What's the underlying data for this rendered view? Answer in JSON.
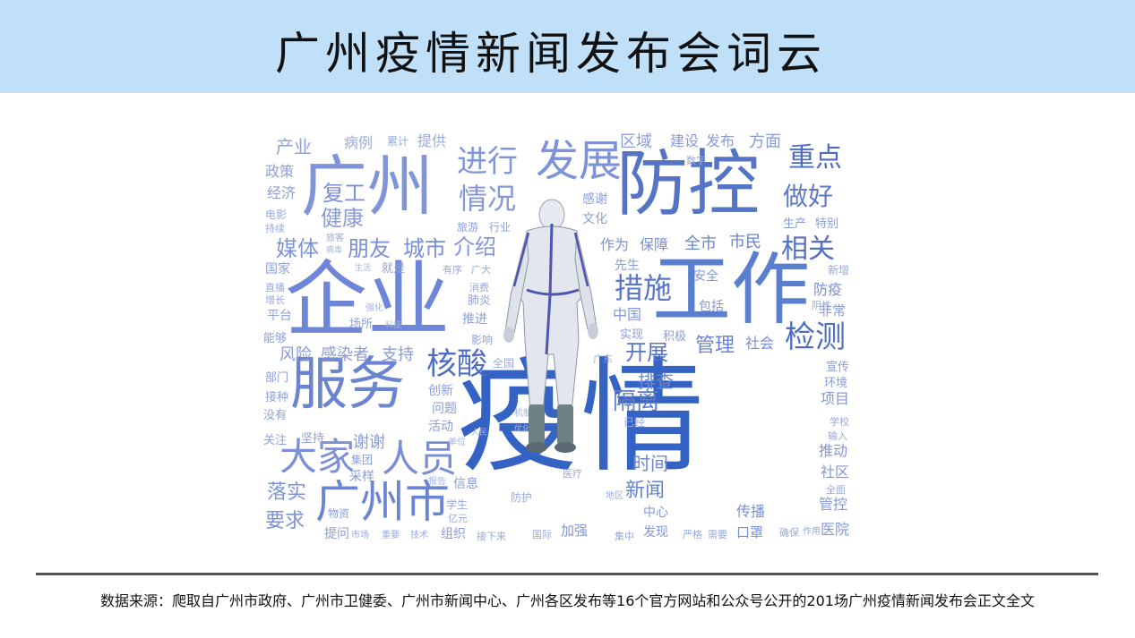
{
  "title": "广州疫情新闻发布会词云",
  "caption": "数据来源：爬取自广州市政府、广州市卫健委、广州市新闻中心、广州各区发布等16个官方网站和公众号公开的201场广州疫情新闻发布会正文全文",
  "colors": {
    "header_bg": "#bfe0f8",
    "dark_blue": "#3a64c8",
    "mid_blue": "#5a7fd2",
    "light_blue": "#8fa6dc",
    "pale_blue": "#b9c7e8"
  },
  "words": {
    "w01": "疫情",
    "w02": "企业",
    "w03": "工作",
    "w04": "防控",
    "w05": "广州",
    "w06": "服务",
    "w07": "广州市",
    "w08": "发展",
    "w09": "大家",
    "w10": "人员",
    "w11": "检测",
    "w12": "核酸",
    "w13": "进行",
    "w14": "情况",
    "w15": "措施",
    "w16": "重点",
    "w17": "相关",
    "w18": "做好",
    "w19": "健康",
    "w20": "复工",
    "w21": "朋友",
    "w22": "城市",
    "w23": "介绍",
    "w24": "媒体",
    "w25": "隔离",
    "w26": "开展",
    "w27": "管理",
    "w28": "排查",
    "w29": "时间",
    "w30": "新闻",
    "w31": "落实",
    "w32": "要求",
    "w33": "谢谢",
    "w34": "感染者",
    "w35": "风险",
    "w36": "支持",
    "w37": "产业",
    "w38": "病例",
    "w39": "提供",
    "w40": "区域",
    "w41": "建设",
    "w42": "发布",
    "w43": "方面",
    "w44": "政策",
    "w45": "经济",
    "w46": "全市",
    "w47": "保障",
    "w48": "作为",
    "w49": "市民",
    "w50": "防疫",
    "w51": "中国",
    "w52": "社会",
    "w53": "包括",
    "w54": "安全",
    "w55": "项目",
    "w56": "推动",
    "w57": "社区",
    "w58": "管控",
    "w59": "医院",
    "w60": "传播",
    "w61": "口罩",
    "w62": "发现",
    "w63": "加强",
    "w64": "中心",
    "w65": "采样",
    "w66": "物资",
    "w67": "提问",
    "w68": "组织",
    "w69": "信息",
    "w70": "活动",
    "w71": "创新",
    "w72": "问题",
    "w73": "感谢",
    "w74": "文化",
    "w75": "生产",
    "w76": "特别",
    "w77": "非常",
    "w78": "环境",
    "w79": "宣传",
    "w80": "先生",
    "w81": "实现",
    "w82": "积极",
    "w83": "国家",
    "w84": "平台",
    "w85": "能够",
    "w86": "部门",
    "w87": "接种",
    "w88": "没有",
    "w89": "关注",
    "w90": "坚持",
    "w91": "集团",
    "w92": "场所",
    "w93": "就是",
    "w94": "肺炎",
    "w95": "推进",
    "w96": "影响",
    "w97": "旅游",
    "w98": "行业",
    "w99": "数字",
    "w100": "累计",
    "w101": "电影",
    "w102": "持续",
    "w103": "直播",
    "w104": "增长",
    "w105": "全国",
    "w106": "广东",
    "w107": "已经",
    "w108": "学生",
    "w109": "亿元",
    "w110": "接下来",
    "w111": "国际",
    "w112": "集中",
    "w113": "需要",
    "w114": "严格",
    "w115": "确保",
    "w116": "作用",
    "w117": "全面",
    "w118": "新增",
    "w119": "阴性",
    "w120": "学校",
    "w121": "输入",
    "w122": "有序",
    "w123": "消费",
    "w124": "广大",
    "w125": "防护",
    "w126": "医疗",
    "w127": "地区",
    "w128": "市场",
    "w129": "重要",
    "w130": "技术",
    "w131": "旅客",
    "w132": "病毒",
    "w133": "生活",
    "w134": "强化",
    "w135": "科技",
    "w136": "机制",
    "w137": "优化",
    "w138": "报告",
    "w139": "单位",
    "w140": "人民"
  }
}
